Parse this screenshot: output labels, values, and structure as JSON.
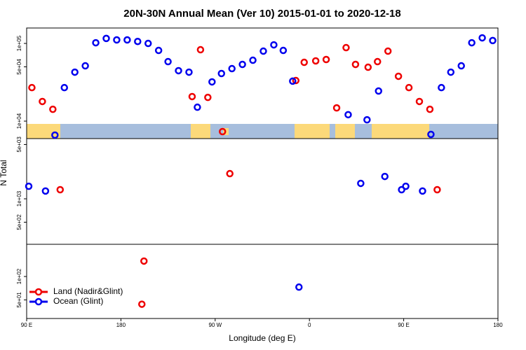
{
  "chart_data": {
    "type": "scatter",
    "title": "20N-30N Annual Mean (Ver 10)   2015-01-01 to 2020-12-18",
    "x_label": "Longitude (deg E)",
    "y_label": "N Total",
    "xlim": [
      90,
      540
    ],
    "xticks": [
      {
        "value": 90,
        "label": "90 E"
      },
      {
        "value": 180,
        "label": "180"
      },
      {
        "value": 270,
        "label": "90 W"
      },
      {
        "value": 360,
        "label": "0"
      },
      {
        "value": 450,
        "label": "90 E"
      },
      {
        "value": 540,
        "label": "180"
      }
    ],
    "ylim": [
      28.8,
      158000
    ],
    "log_y": true,
    "yticks": [
      {
        "value": 50,
        "label": "5e+01"
      },
      {
        "value": 100,
        "label": "1e+02"
      },
      {
        "value": 500,
        "label": "5e+02"
      },
      {
        "value": 1000,
        "label": "1e+03"
      },
      {
        "value": 5000,
        "label": "5e+03"
      },
      {
        "value": 10000,
        "label": "1e+04"
      },
      {
        "value": 50000,
        "label": "5e+04"
      },
      {
        "value": 100000,
        "label": "1e+05"
      }
    ],
    "legend": "lower left",
    "series": [
      {
        "name": "Land (Nadir&Glint)",
        "color": "#ee0000",
        "x": [
          95,
          105,
          115,
          122,
          200,
          202,
          248,
          256,
          263,
          277,
          284,
          347,
          355,
          366,
          376,
          386,
          395,
          404,
          416,
          425,
          435,
          445,
          455,
          465,
          475,
          482
        ],
        "values": [
          27000,
          17900,
          14200,
          1310,
          44,
          158,
          20700,
          83000,
          20200,
          7330,
          2110,
          33300,
          57100,
          59600,
          62100,
          14800,
          88300,
          53700,
          49400,
          58300,
          79600,
          37800,
          27000,
          17900,
          14200,
          1310
        ]
      },
      {
        "name": "Ocean (Glint)",
        "color": "#0000ee",
        "x": [
          92,
          108,
          117,
          126,
          136,
          146,
          156,
          166,
          176,
          186,
          196,
          206,
          216,
          225,
          235,
          245,
          253,
          267,
          276,
          286,
          296,
          306,
          316,
          326,
          335,
          344,
          350,
          397,
          409,
          415,
          426,
          432,
          448,
          452,
          468,
          476,
          486,
          495,
          505,
          515,
          525,
          535
        ],
        "values": [
          1450,
          1260,
          6610,
          27000,
          42700,
          51500,
          102000,
          116000,
          111000,
          111000,
          106000,
          100000,
          81300,
          58300,
          44600,
          42700,
          15100,
          32000,
          41000,
          47400,
          53700,
          60800,
          79600,
          95900,
          81300,
          32700,
          73,
          12100,
          1580,
          10400,
          24400,
          1940,
          1310,
          1450,
          1260,
          6750,
          27000,
          42700,
          51500,
          102000,
          118000,
          109000
        ]
      }
    ]
  }
}
